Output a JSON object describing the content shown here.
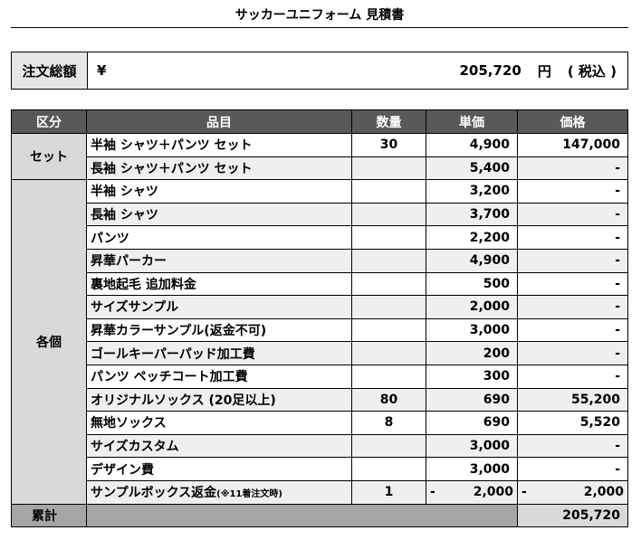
{
  "title": "サッカーユニフォーム 見積書",
  "total": {
    "label": "注文総額",
    "currency": "¥",
    "amount": "205,720",
    "unit": "円",
    "tax_note": "( 税込 )"
  },
  "columns": [
    "区分",
    "品目",
    "数量",
    "単価",
    "価格"
  ],
  "sections": {
    "set_label": "セット",
    "each_label": "各個"
  },
  "rows": [
    {
      "item": "半袖 シャツ＋パンツ セット",
      "qty": "30",
      "price": "4,900",
      "amount": "147,000"
    },
    {
      "item": "長袖 シャツ＋パンツ セット",
      "qty": "",
      "price": "5,400",
      "amount": "-"
    },
    {
      "item": "半袖 シャツ",
      "qty": "",
      "price": "3,200",
      "amount": "-"
    },
    {
      "item": "長袖 シャツ",
      "qty": "",
      "price": "3,700",
      "amount": "-"
    },
    {
      "item": "パンツ",
      "qty": "",
      "price": "2,200",
      "amount": "-"
    },
    {
      "item": "昇華パーカー",
      "qty": "",
      "price": "4,900",
      "amount": "-"
    },
    {
      "item": "裏地起毛 追加料金",
      "qty": "",
      "price": "500",
      "amount": "-"
    },
    {
      "item": "サイズサンプル",
      "qty": "",
      "price": "2,000",
      "amount": "-"
    },
    {
      "item": "昇華カラーサンプル(返金不可)",
      "qty": "",
      "price": "3,000",
      "amount": "-"
    },
    {
      "item": "ゴールキーパーパッド加工費",
      "qty": "",
      "price": "200",
      "amount": "-"
    },
    {
      "item": "パンツ ペッチコート加工費",
      "qty": "",
      "price": "300",
      "amount": "-"
    },
    {
      "item": "オリジナルソックス (20足以上)",
      "qty": "80",
      "price": "690",
      "amount": "55,200"
    },
    {
      "item": "無地ソックス",
      "qty": "8",
      "price": "690",
      "amount": "5,520"
    },
    {
      "item": "サイズカスタム",
      "qty": "",
      "price": "3,000",
      "amount": "-"
    },
    {
      "item": "デザイン費",
      "qty": "",
      "price": "3,000",
      "amount": "-"
    },
    {
      "item": "サンプルボックス返金",
      "item_note": "(※11着注文時)",
      "qty": "1",
      "price_sign": "-",
      "price": "2,000",
      "amount_sign": "-",
      "amount": "2,000"
    }
  ],
  "summary": {
    "label": "累計",
    "amount": "205,720"
  }
}
